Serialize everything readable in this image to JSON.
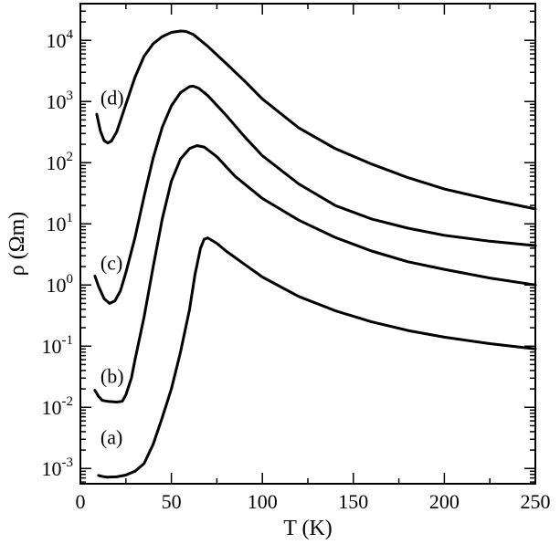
{
  "chart_data": {
    "type": "line",
    "xlabel": "T (K)",
    "ylabel": "ρ (Ωm)",
    "xlim": [
      0,
      250
    ],
    "ylim_log10": [
      -3.25,
      4.6
    ],
    "yscale": "log",
    "grid": false,
    "x_ticks": [
      {
        "value": 0,
        "label": "0"
      },
      {
        "value": 50,
        "label": "50"
      },
      {
        "value": 100,
        "label": "100"
      },
      {
        "value": 150,
        "label": "150"
      },
      {
        "value": 200,
        "label": "200"
      },
      {
        "value": 250,
        "label": "250"
      }
    ],
    "y_ticks": [
      {
        "exp": -3,
        "base": "10",
        "sup": "-3"
      },
      {
        "exp": -2,
        "base": "10",
        "sup": "-2"
      },
      {
        "exp": -1,
        "base": "10",
        "sup": "-1"
      },
      {
        "exp": 0,
        "base": "10",
        "sup": "0"
      },
      {
        "exp": 1,
        "base": "10",
        "sup": "1"
      },
      {
        "exp": 2,
        "base": "10",
        "sup": "2"
      },
      {
        "exp": 3,
        "base": "10",
        "sup": "3"
      },
      {
        "exp": 4,
        "base": "10",
        "sup": "4"
      }
    ],
    "series": [
      {
        "name": "(a)",
        "label_at": [
          11,
          -2.6
        ],
        "points": [
          [
            10,
            0.00077
          ],
          [
            12,
            0.00074
          ],
          [
            15,
            0.00072
          ],
          [
            20,
            0.00073
          ],
          [
            25,
            0.00078
          ],
          [
            30,
            0.0009
          ],
          [
            35,
            0.0012
          ],
          [
            40,
            0.0025
          ],
          [
            45,
            0.0068
          ],
          [
            50,
            0.02
          ],
          [
            55,
            0.08
          ],
          [
            60,
            0.4
          ],
          [
            63,
            1.5
          ],
          [
            66,
            4
          ],
          [
            68,
            5.6
          ],
          [
            70,
            5.9
          ],
          [
            75,
            4.8
          ],
          [
            80,
            3.6
          ],
          [
            90,
            2.2
          ],
          [
            100,
            1.35
          ],
          [
            120,
            0.65
          ],
          [
            140,
            0.38
          ],
          [
            160,
            0.25
          ],
          [
            180,
            0.18
          ],
          [
            200,
            0.14
          ],
          [
            225,
            0.11
          ],
          [
            250,
            0.09
          ]
        ]
      },
      {
        "name": "(b)",
        "label_at": [
          11,
          -1.6
        ],
        "points": [
          [
            8,
            0.019
          ],
          [
            10,
            0.015
          ],
          [
            12,
            0.013
          ],
          [
            15,
            0.0125
          ],
          [
            20,
            0.0122
          ],
          [
            23,
            0.0125
          ],
          [
            25,
            0.016
          ],
          [
            28,
            0.03
          ],
          [
            30,
            0.06
          ],
          [
            35,
            0.3
          ],
          [
            40,
            2
          ],
          [
            45,
            12
          ],
          [
            50,
            50
          ],
          [
            55,
            115
          ],
          [
            60,
            170
          ],
          [
            64,
            190
          ],
          [
            68,
            180
          ],
          [
            75,
            125
          ],
          [
            85,
            60
          ],
          [
            100,
            26
          ],
          [
            120,
            11.5
          ],
          [
            140,
            6
          ],
          [
            160,
            3.6
          ],
          [
            180,
            2.4
          ],
          [
            200,
            1.8
          ],
          [
            225,
            1.3
          ],
          [
            250,
            1.0
          ]
        ]
      },
      {
        "name": "(c)",
        "label_at": [
          11,
          0.25
        ],
        "points": [
          [
            8,
            1.4
          ],
          [
            10,
            0.95
          ],
          [
            13,
            0.6
          ],
          [
            16,
            0.5
          ],
          [
            19,
            0.55
          ],
          [
            22,
            0.8
          ],
          [
            25,
            1.6
          ],
          [
            30,
            6
          ],
          [
            35,
            28
          ],
          [
            40,
            120
          ],
          [
            45,
            380
          ],
          [
            50,
            850
          ],
          [
            55,
            1400
          ],
          [
            60,
            1750
          ],
          [
            62,
            1780
          ],
          [
            65,
            1650
          ],
          [
            70,
            1250
          ],
          [
            80,
            600
          ],
          [
            90,
            270
          ],
          [
            100,
            130
          ],
          [
            120,
            45
          ],
          [
            140,
            20
          ],
          [
            160,
            12
          ],
          [
            180,
            8.5
          ],
          [
            200,
            6.5
          ],
          [
            225,
            5.2
          ],
          [
            250,
            4.4
          ]
        ]
      },
      {
        "name": "(d)",
        "label_at": [
          11,
          2.95
        ],
        "points": [
          [
            9,
            620
          ],
          [
            11,
            330
          ],
          [
            13,
            230
          ],
          [
            15,
            210
          ],
          [
            17,
            225
          ],
          [
            20,
            320
          ],
          [
            25,
            900
          ],
          [
            30,
            2500
          ],
          [
            35,
            5500
          ],
          [
            40,
            8800
          ],
          [
            45,
            11500
          ],
          [
            50,
            13500
          ],
          [
            55,
            14200
          ],
          [
            58,
            14000
          ],
          [
            62,
            12500
          ],
          [
            70,
            8000
          ],
          [
            80,
            4200
          ],
          [
            90,
            2200
          ],
          [
            100,
            1100
          ],
          [
            120,
            370
          ],
          [
            140,
            170
          ],
          [
            160,
            95
          ],
          [
            180,
            57
          ],
          [
            200,
            37
          ],
          [
            225,
            25
          ],
          [
            250,
            17.5
          ]
        ]
      }
    ]
  }
}
